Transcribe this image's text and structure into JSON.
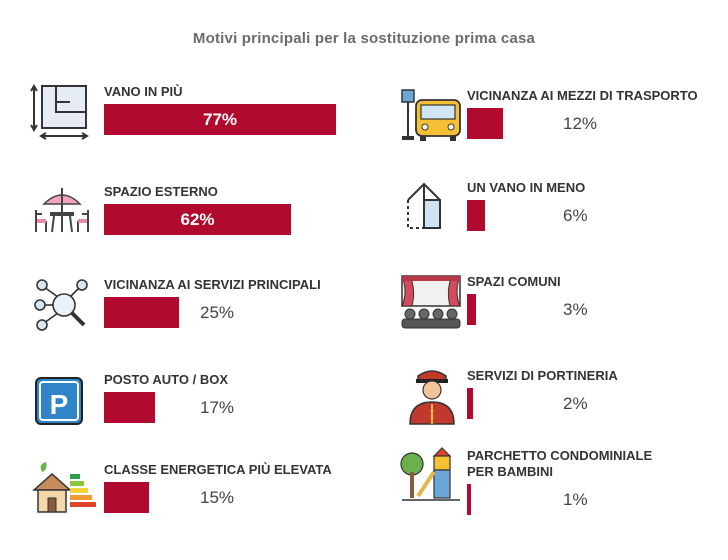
{
  "chart_data": {
    "type": "bar",
    "title": "Motivi principali per la sostituzione prima casa",
    "bar_color": "#b20a2e",
    "items": [
      {
        "label": "VANO IN PIÙ",
        "value": 77,
        "value_label": "77%",
        "icon": "floor-plan-icon"
      },
      {
        "label": "SPAZIO ESTERNO",
        "value": 62,
        "value_label": "62%",
        "icon": "patio-table-umbrella-icon"
      },
      {
        "label": "VICINANZA AI SERVIZI PRINCIPALI",
        "value": 25,
        "value_label": "25%",
        "icon": "magnifier-network-icon"
      },
      {
        "label": "POSTO AUTO / BOX",
        "value": 17,
        "value_label": "17%",
        "icon": "parking-sign-icon"
      },
      {
        "label": "CLASSE ENERGETICA PIÙ ELEVATA",
        "value": 15,
        "value_label": "15%",
        "icon": "energy-class-house-icon"
      },
      {
        "label": "VICINANZA AI MEZZI DI TRASPORTO",
        "value": 12,
        "value_label": "12%",
        "icon": "bus-stop-icon"
      },
      {
        "label": "UN VANO IN MENO",
        "value": 6,
        "value_label": "6%",
        "icon": "house-minus-room-icon"
      },
      {
        "label": "SPAZI COMUNI",
        "value": 3,
        "value_label": "3%",
        "icon": "theater-audience-icon"
      },
      {
        "label": "SERVIZI DI PORTINERIA",
        "value": 2,
        "value_label": "2%",
        "icon": "doorman-icon"
      },
      {
        "label": "PARCHETTO CONDOMINIALE\nPER BAMBINI",
        "value": 1,
        "value_label": "1%",
        "icon": "playground-icon"
      }
    ]
  }
}
